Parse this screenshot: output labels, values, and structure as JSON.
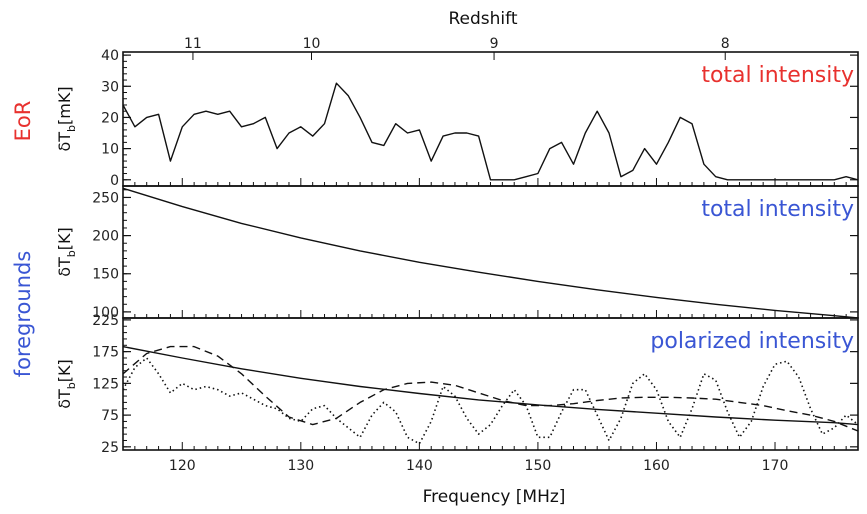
{
  "colors": {
    "eor": "#e8312e",
    "foreground": "#3a56d4",
    "ink": "#111111"
  },
  "chart_data": {
    "type": "line",
    "xlabel": "Frequency [MHz]",
    "xlim": [
      115,
      177
    ],
    "x_ticks": [
      "120",
      "130",
      "140",
      "150",
      "160",
      "170"
    ],
    "top_axis": {
      "label": "Redshift",
      "ticks": [
        {
          "label": "11",
          "frequency": 120.9
        },
        {
          "label": "10",
          "frequency": 130.9
        },
        {
          "label": "9",
          "frequency": 146.3
        },
        {
          "label": "8",
          "frequency": 165.8
        }
      ]
    },
    "group_labels": {
      "eor": "EoR",
      "foregrounds": "foregrounds"
    },
    "panels": [
      {
        "id": "eor",
        "ylabel": "δT",
        "ylabel_sub": "b",
        "ylabel_unit": "[mK]",
        "annotation": "total intensity",
        "ylim": [
          -2,
          41
        ],
        "yticks": [
          "0",
          "10",
          "20",
          "30",
          "40"
        ],
        "series": [
          {
            "style": "solid",
            "x": [
              115,
              116,
              117,
              118,
              119,
              120,
              121,
              122,
              123,
              124,
              125,
              126,
              127,
              128,
              129,
              130,
              131,
              132,
              133,
              134,
              135,
              136,
              137,
              138,
              139,
              140,
              141,
              142,
              143,
              144,
              145,
              146,
              147,
              148,
              149,
              150,
              151,
              152,
              153,
              154,
              155,
              156,
              157,
              158,
              159,
              160,
              161,
              162,
              163,
              164,
              165,
              166,
              167,
              168,
              169,
              170,
              171,
              172,
              173,
              174,
              175,
              176,
              177
            ],
            "y": [
              24,
              17,
              20,
              21,
              6,
              17,
              21,
              22,
              21,
              22,
              17,
              18,
              20,
              10,
              15,
              17,
              14,
              18,
              31,
              27,
              20,
              12,
              11,
              18,
              15,
              16,
              6,
              14,
              15,
              15,
              14,
              0,
              0,
              0,
              1,
              2,
              10,
              12,
              5,
              15,
              22,
              15,
              1,
              3,
              10,
              5,
              12,
              20,
              18,
              5,
              1,
              0,
              0,
              0,
              0,
              0,
              0,
              0,
              0,
              0,
              0,
              1,
              0
            ]
          }
        ]
      },
      {
        "id": "fg-total",
        "ylabel": "δT",
        "ylabel_sub": "b",
        "ylabel_unit": "[K]",
        "annotation": "total intensity",
        "ylim": [
          92,
          265
        ],
        "yticks": [
          "100",
          "150",
          "200",
          "250"
        ],
        "series": [
          {
            "style": "solid",
            "x": [
              115,
              120,
              125,
              130,
              135,
              140,
              145,
              150,
              155,
              160,
              165,
              170,
              175,
              177
            ],
            "y": [
              262,
              238,
              216,
              197,
              180,
              165,
              152,
              140,
              129,
              119,
              110,
              102,
              95,
              92
            ]
          }
        ]
      },
      {
        "id": "fg-polarized",
        "ylabel": "δT",
        "ylabel_sub": "b",
        "ylabel_unit": "[K]",
        "annotation": "polarized intensity",
        "ylim": [
          20,
          228
        ],
        "yticks": [
          "25",
          "75",
          "125",
          "175",
          "225"
        ],
        "series": [
          {
            "style": "solid",
            "x": [
              115,
              120,
              125,
              130,
              135,
              140,
              145,
              150,
              155,
              160,
              165,
              170,
              175,
              177
            ],
            "y": [
              183,
              165,
              148,
              133,
              120,
              109,
              99,
              91,
              84,
              78,
              72,
              67,
              63,
              60
            ]
          },
          {
            "style": "dashed",
            "x": [
              115,
              117,
              119,
              121,
              123,
              125,
              127,
              129,
              131,
              133,
              135,
              137,
              139,
              141,
              143,
              145,
              147,
              149,
              151,
              153,
              155,
              157,
              159,
              161,
              163,
              165,
              167,
              169,
              171,
              173,
              175,
              177
            ],
            "y": [
              140,
              172,
              183,
              183,
              168,
              140,
              105,
              72,
              60,
              70,
              95,
              115,
              125,
              127,
              122,
              110,
              98,
              90,
              90,
              93,
              98,
              102,
              103,
              103,
              102,
              100,
              95,
              90,
              82,
              75,
              65,
              50
            ]
          },
          {
            "style": "dotted",
            "x": [
              115,
              116,
              117,
              118,
              119,
              120,
              121,
              122,
              123,
              124,
              125,
              126,
              127,
              128,
              129,
              130,
              131,
              132,
              133,
              134,
              135,
              136,
              137,
              138,
              139,
              140,
              141,
              142,
              143,
              144,
              145,
              146,
              147,
              148,
              149,
              150,
              151,
              152,
              153,
              154,
              155,
              156,
              157,
              158,
              159,
              160,
              161,
              162,
              163,
              164,
              165,
              166,
              167,
              168,
              169,
              170,
              171,
              172,
              173,
              174,
              175,
              176,
              177
            ],
            "y": [
              115,
              150,
              165,
              140,
              110,
              125,
              115,
              120,
              115,
              105,
              110,
              100,
              90,
              85,
              70,
              65,
              85,
              90,
              70,
              55,
              40,
              75,
              95,
              80,
              40,
              30,
              65,
              120,
              105,
              70,
              45,
              60,
              90,
              115,
              90,
              40,
              40,
              80,
              115,
              115,
              75,
              35,
              70,
              125,
              140,
              115,
              65,
              40,
              85,
              140,
              130,
              80,
              40,
              65,
              120,
              155,
              160,
              135,
              85,
              45,
              55,
              75,
              60
            ]
          }
        ]
      }
    ]
  }
}
